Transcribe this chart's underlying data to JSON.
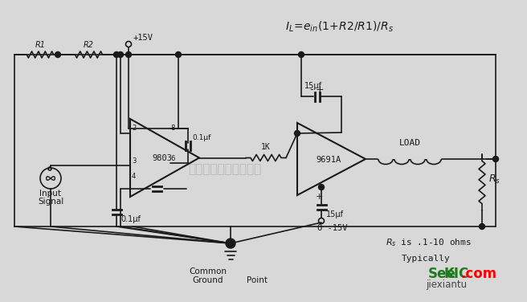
{
  "bg_color": "#e8e8e8",
  "line_color": "#1a1a1a",
  "formula": "I  =e  (1+R2/R1)/R",
  "watermark_cn": "杭州将睿科技有限公司",
  "label_9803": "9803",
  "label_9691A": "9691A",
  "label_load": "LOAD",
  "label_R1": "R1",
  "label_R2": "R2",
  "label_Rs": "R",
  "label_1K": "1K",
  "label_01uf_top": "0.1μf",
  "label_15uf_top": "15μf",
  "label_15uf_bot": "15μf",
  "label_01uf_bot": "0.1μf",
  "label_plus15": "+15V",
  "label_minus15": "-15V",
  "label_input1": "Input",
  "label_input2": "Signal",
  "label_common1": "Common",
  "label_common2": "Ground",
  "label_point": "Point",
  "label_Rs_note1": "R  is .1-10 ohms",
  "label_Rs_note2": "Typically",
  "figsize": [
    6.56,
    3.76
  ],
  "dpi": 100
}
